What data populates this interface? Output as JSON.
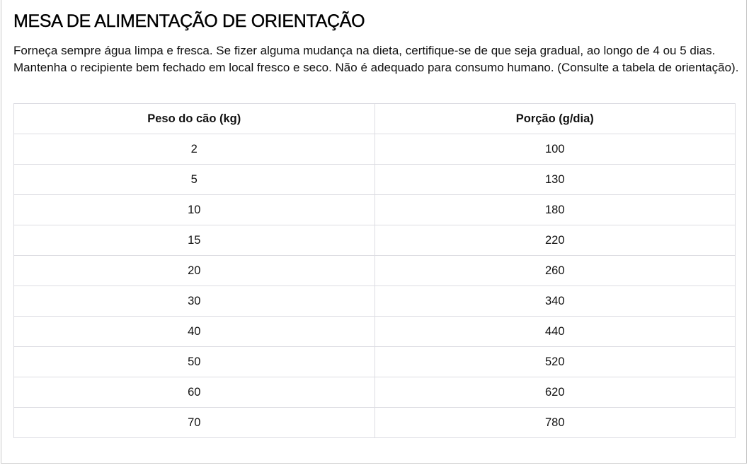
{
  "title": "MESA DE ALIMENTAÇÃO DE ORIENTAÇÃO",
  "description": "Forneça sempre água limpa e fresca. Se fizer alguma mudança na dieta, certifique-se de que seja gradual, ao longo de 4 ou 5 dias. Mantenha o recipiente bem fechado em local fresco e seco. Não é adequado para consumo humano. (Consulte a tabela de orientação).",
  "table": {
    "headers": [
      "Peso do cão (kg)",
      "Porção (g/dia)"
    ],
    "rows": [
      [
        "2",
        "100"
      ],
      [
        "5",
        "130"
      ],
      [
        "10",
        "180"
      ],
      [
        "15",
        "220"
      ],
      [
        "20",
        "260"
      ],
      [
        "30",
        "340"
      ],
      [
        "40",
        "440"
      ],
      [
        "50",
        "520"
      ],
      [
        "60",
        "620"
      ],
      [
        "70",
        "780"
      ]
    ]
  }
}
